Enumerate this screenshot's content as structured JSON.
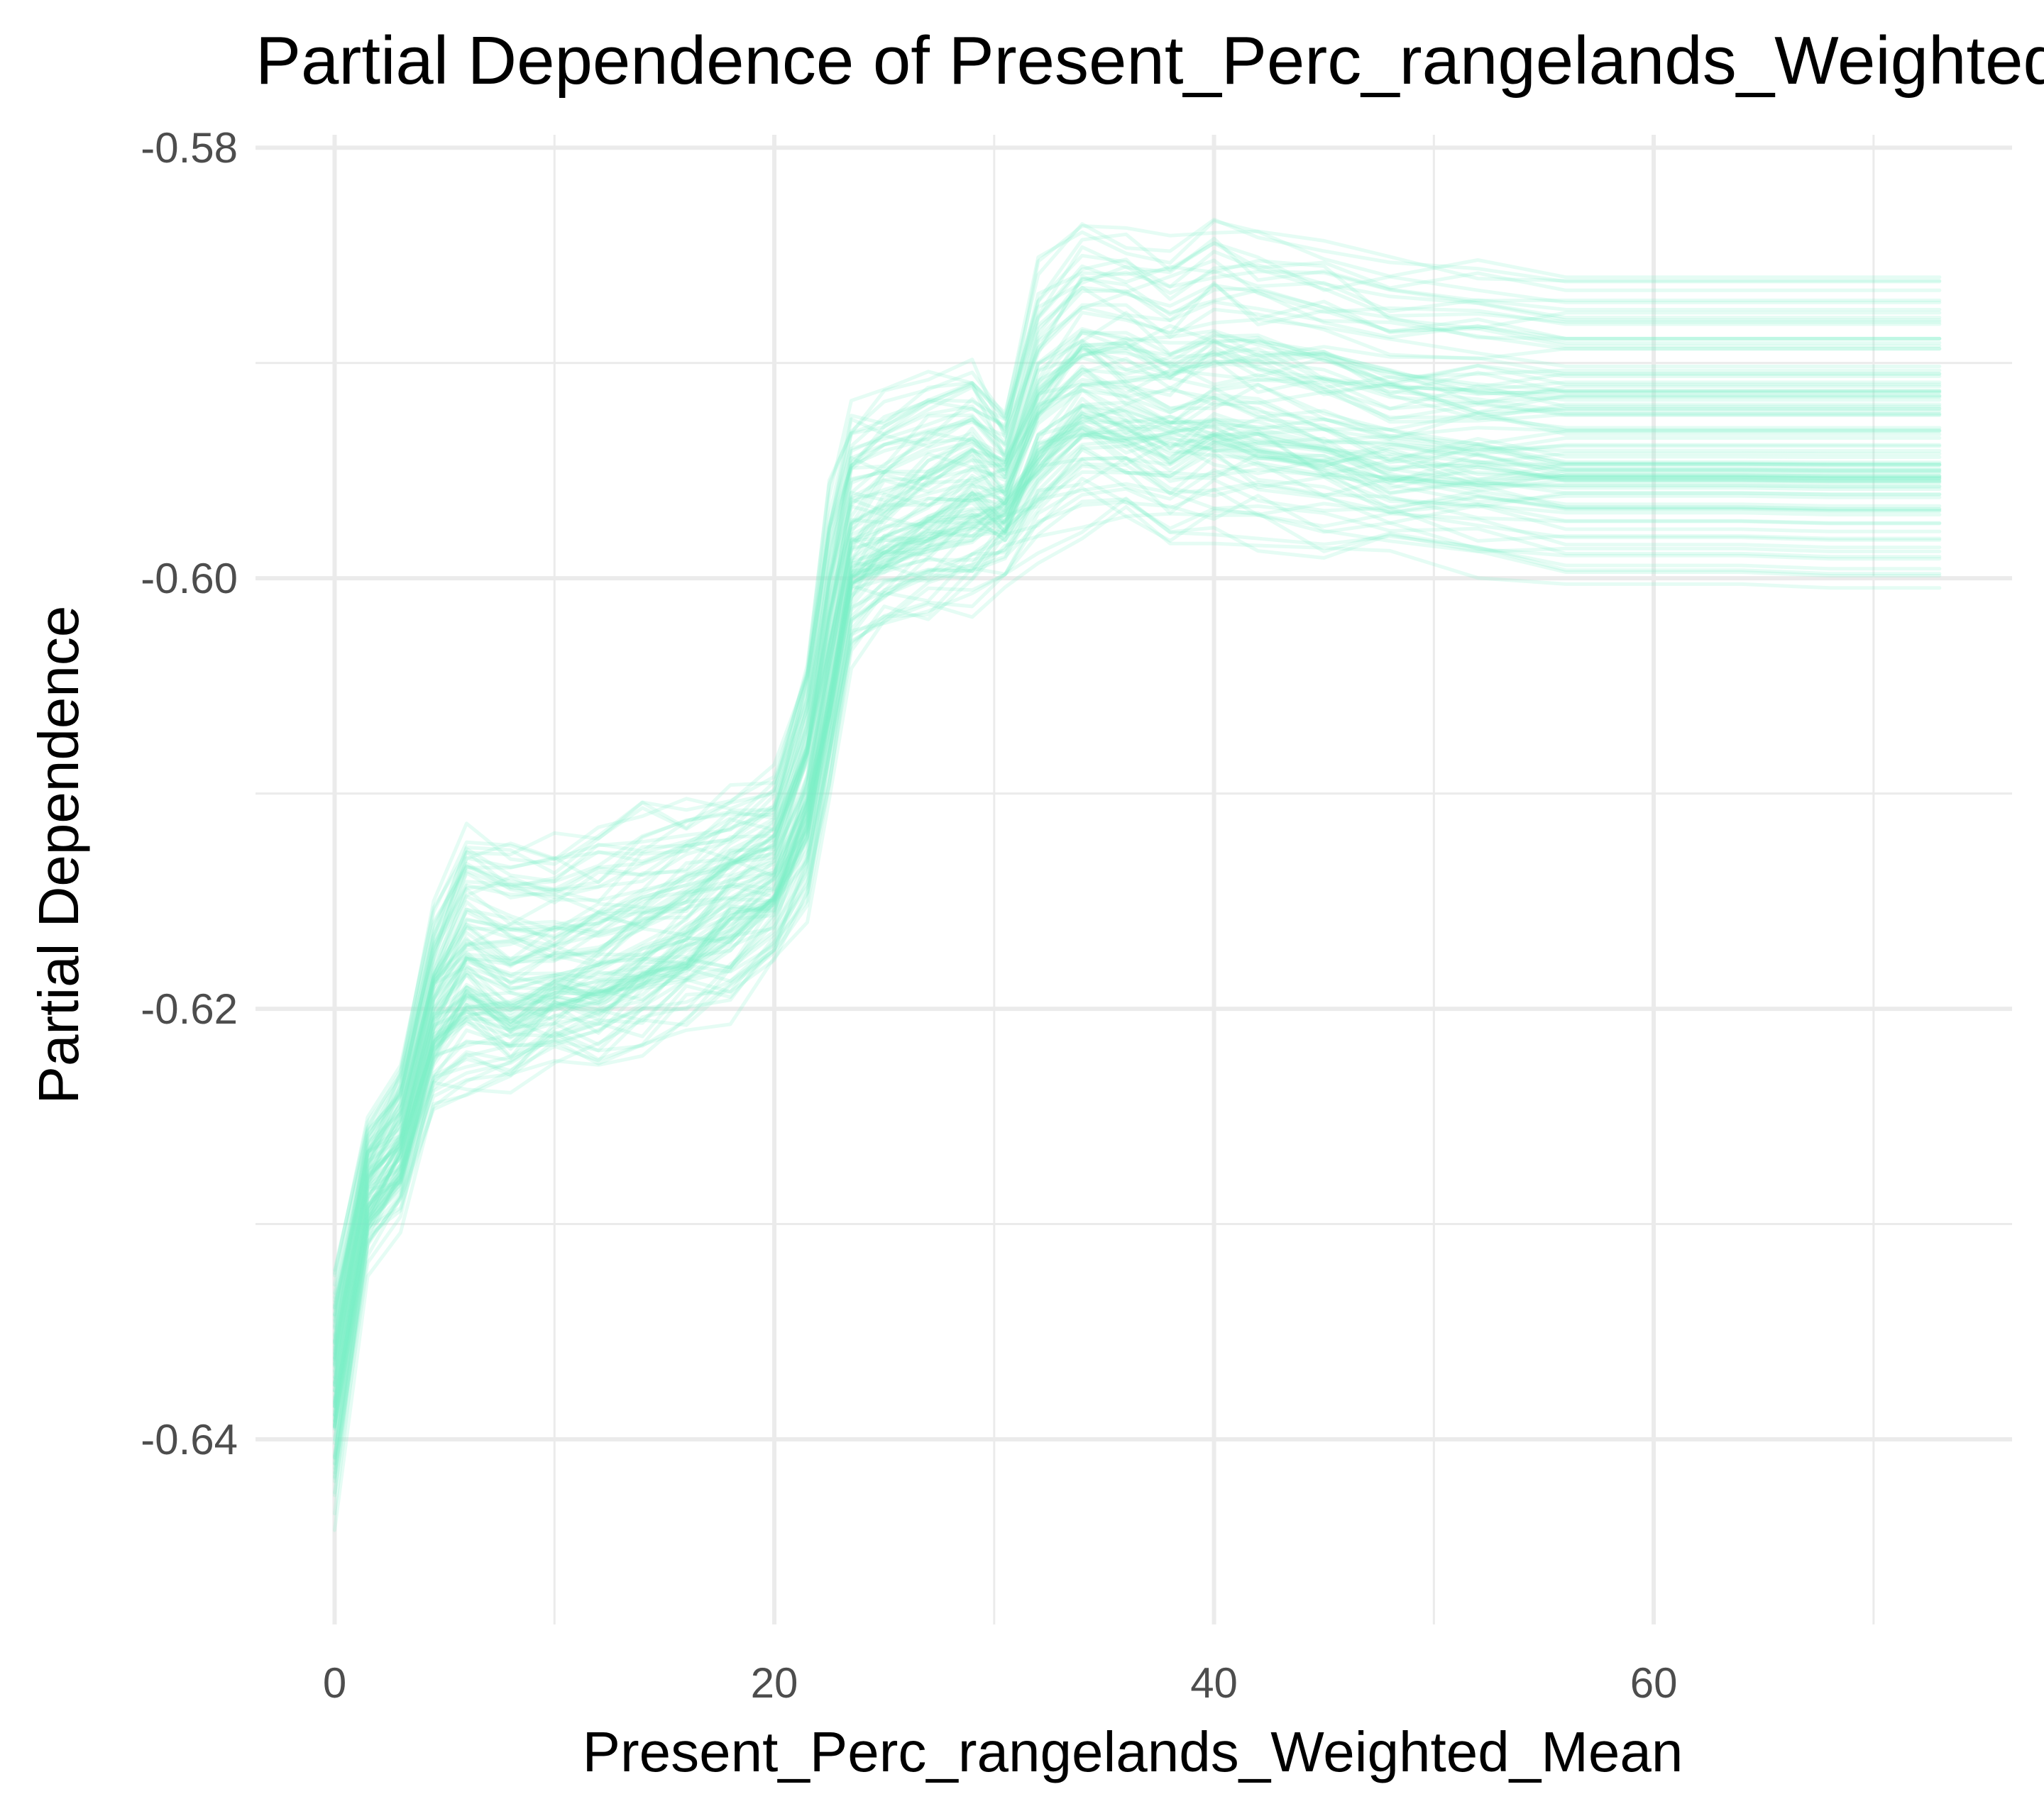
{
  "chart_data": {
    "type": "line",
    "title": "Partial Dependence of Present_Perc_rangelands_Weighted_Mean",
    "xlabel": "Present_Perc_rangelands_Weighted_Mean",
    "ylabel": "Partial Dependence",
    "x_ticks": [
      0,
      20,
      40,
      60
    ],
    "x_tick_labels": [
      "0",
      "20",
      "40",
      "60"
    ],
    "y_ticks": [
      -0.64,
      -0.62,
      -0.6,
      -0.58
    ],
    "y_tick_labels": [
      "-0.64",
      "-0.62",
      "-0.60",
      "-0.58"
    ],
    "xlim": [
      -3.6,
      76.3
    ],
    "ylim": [
      -0.6486,
      -0.5794
    ],
    "grid": true,
    "line_color": "#7ff0c8",
    "line_opacity": 0.2,
    "n_curves": 100,
    "x": [
      0,
      1.5,
      3,
      4.5,
      6,
      8,
      10,
      12,
      14,
      16,
      18,
      20,
      21.5,
      22.5,
      23.5,
      25,
      27,
      29,
      30.5,
      32,
      34,
      36,
      38,
      40,
      42,
      45,
      48,
      52,
      56,
      60,
      64,
      68,
      73
    ],
    "median_curve": [
      -0.6375,
      -0.6285,
      -0.6265,
      -0.6205,
      -0.6185,
      -0.6195,
      -0.619,
      -0.6185,
      -0.6175,
      -0.6165,
      -0.615,
      -0.614,
      -0.61,
      -0.6045,
      -0.599,
      -0.598,
      -0.597,
      -0.596,
      -0.5965,
      -0.5935,
      -0.5915,
      -0.592,
      -0.5925,
      -0.592,
      -0.5925,
      -0.593,
      -0.5935,
      -0.5937,
      -0.5938,
      -0.5938,
      -0.5938,
      -0.5938,
      -0.5938
    ],
    "envelope_lower": [
      -0.644,
      -0.632,
      -0.63,
      -0.625,
      -0.6245,
      -0.624,
      -0.6225,
      -0.623,
      -0.6225,
      -0.621,
      -0.6205,
      -0.6185,
      -0.616,
      -0.6105,
      -0.604,
      -0.603,
      -0.6025,
      -0.602,
      -0.6,
      -0.599,
      -0.5985,
      -0.598,
      -0.599,
      -0.5985,
      -0.599,
      -0.5995,
      -0.6,
      -0.6005,
      -0.601,
      -0.601,
      -0.601,
      -0.6012,
      -0.6012
    ],
    "envelope_upper": [
      -0.632,
      -0.625,
      -0.622,
      -0.615,
      -0.611,
      -0.611,
      -0.6115,
      -0.611,
      -0.61,
      -0.61,
      -0.6095,
      -0.6085,
      -0.603,
      -0.595,
      -0.5915,
      -0.591,
      -0.59,
      -0.5895,
      -0.592,
      -0.585,
      -0.583,
      -0.583,
      -0.5835,
      -0.582,
      -0.583,
      -0.5835,
      -0.5845,
      -0.585,
      -0.585,
      -0.585,
      -0.585,
      -0.585,
      -0.585
    ]
  }
}
